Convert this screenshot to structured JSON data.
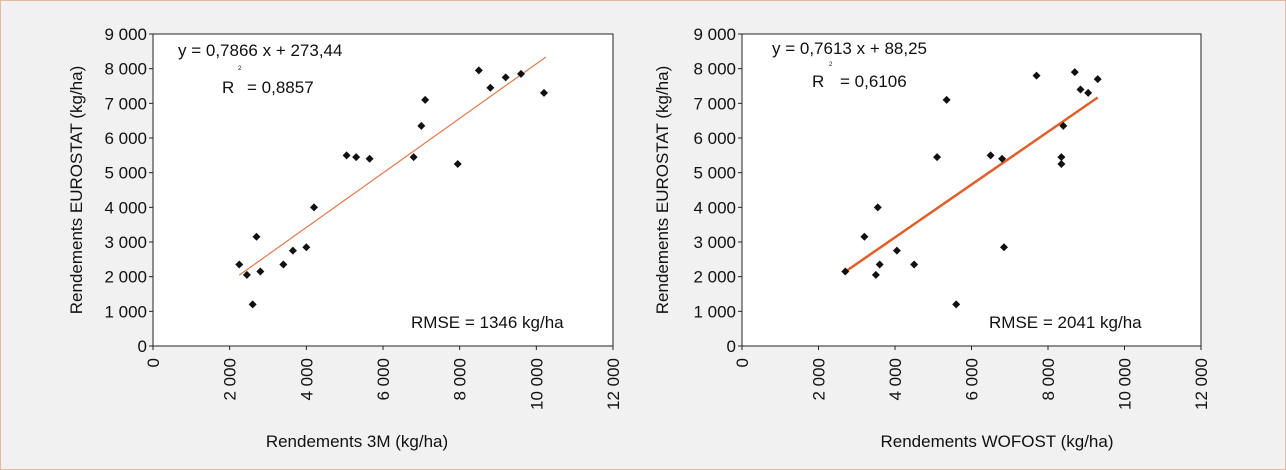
{
  "chart_data": [
    {
      "type": "scatter",
      "xlabel": "Rendements 3M (kg/ha)",
      "ylabel": "Rendements EUROSTAT (kg/ha)",
      "xlim": [
        0,
        12000
      ],
      "ylim": [
        0,
        9000
      ],
      "x_ticks": [
        "0",
        "2 000",
        "4 000",
        "6 000",
        "8 000",
        "10 000",
        "12 000"
      ],
      "y_ticks": [
        "0",
        "1 000",
        "2 000",
        "3 000",
        "4 000",
        "5 000",
        "6 000",
        "7 000",
        "8 000",
        "9 000"
      ],
      "equation": "y = 0,7866 x + 273,44",
      "r2_label": "R",
      "r2_sup": "2",
      "r2_value": "= 0,8857",
      "rmse": "RMSE = 1346 kg/ha",
      "trendline": {
        "slope": 0.7866,
        "intercept": 273.44,
        "x_range": [
          2250,
          10250
        ],
        "color": "#e07a4f",
        "width": "thin"
      },
      "points": [
        {
          "x": 2250,
          "y": 2350
        },
        {
          "x": 2450,
          "y": 2050
        },
        {
          "x": 2600,
          "y": 1200
        },
        {
          "x": 2700,
          "y": 3150
        },
        {
          "x": 2800,
          "y": 2150
        },
        {
          "x": 3400,
          "y": 2350
        },
        {
          "x": 3650,
          "y": 2750
        },
        {
          "x": 4000,
          "y": 2850
        },
        {
          "x": 4200,
          "y": 4000
        },
        {
          "x": 5050,
          "y": 5500
        },
        {
          "x": 5300,
          "y": 5450
        },
        {
          "x": 5650,
          "y": 5400
        },
        {
          "x": 6800,
          "y": 5450
        },
        {
          "x": 7000,
          "y": 6350
        },
        {
          "x": 7100,
          "y": 7100
        },
        {
          "x": 7950,
          "y": 5250
        },
        {
          "x": 8500,
          "y": 7950
        },
        {
          "x": 8800,
          "y": 7450
        },
        {
          "x": 9200,
          "y": 7750
        },
        {
          "x": 9600,
          "y": 7850
        },
        {
          "x": 10200,
          "y": 7300
        }
      ]
    },
    {
      "type": "scatter",
      "xlabel": "Rendements WOFOST (kg/ha)",
      "ylabel": "Rendements EUROSTAT (kg/ha)",
      "xlim": [
        0,
        12000
      ],
      "ylim": [
        0,
        9000
      ],
      "x_ticks": [
        "0",
        "2 000",
        "4 000",
        "6 000",
        "8 000",
        "10 000",
        "12 000"
      ],
      "y_ticks": [
        "0",
        "1 000",
        "2 000",
        "3 000",
        "4 000",
        "5 000",
        "6 000",
        "7 000",
        "8 000",
        "9 000"
      ],
      "equation": "y = 0,7613 x + 88,25",
      "r2_label": "R",
      "r2_sup": "2",
      "r2_value": "= 0,6106",
      "rmse": "RMSE = 2041 kg/ha",
      "trendline": {
        "slope": 0.7613,
        "intercept": 88.25,
        "x_range": [
          2700,
          9300
        ],
        "color": "#e0602b",
        "width": "thick"
      },
      "points": [
        {
          "x": 2700,
          "y": 2150
        },
        {
          "x": 3200,
          "y": 3150
        },
        {
          "x": 3500,
          "y": 2050
        },
        {
          "x": 3550,
          "y": 4000
        },
        {
          "x": 3600,
          "y": 2350
        },
        {
          "x": 4050,
          "y": 2750
        },
        {
          "x": 4500,
          "y": 2350
        },
        {
          "x": 5100,
          "y": 5450
        },
        {
          "x": 5350,
          "y": 7100
        },
        {
          "x": 5600,
          "y": 1200
        },
        {
          "x": 6500,
          "y": 5500
        },
        {
          "x": 6800,
          "y": 5400
        },
        {
          "x": 6850,
          "y": 2850
        },
        {
          "x": 7700,
          "y": 7800
        },
        {
          "x": 8350,
          "y": 5450
        },
        {
          "x": 8350,
          "y": 5250
        },
        {
          "x": 8400,
          "y": 6350
        },
        {
          "x": 8700,
          "y": 7900
        },
        {
          "x": 8850,
          "y": 7400
        },
        {
          "x": 9050,
          "y": 7300
        },
        {
          "x": 9300,
          "y": 7700
        }
      ]
    }
  ]
}
